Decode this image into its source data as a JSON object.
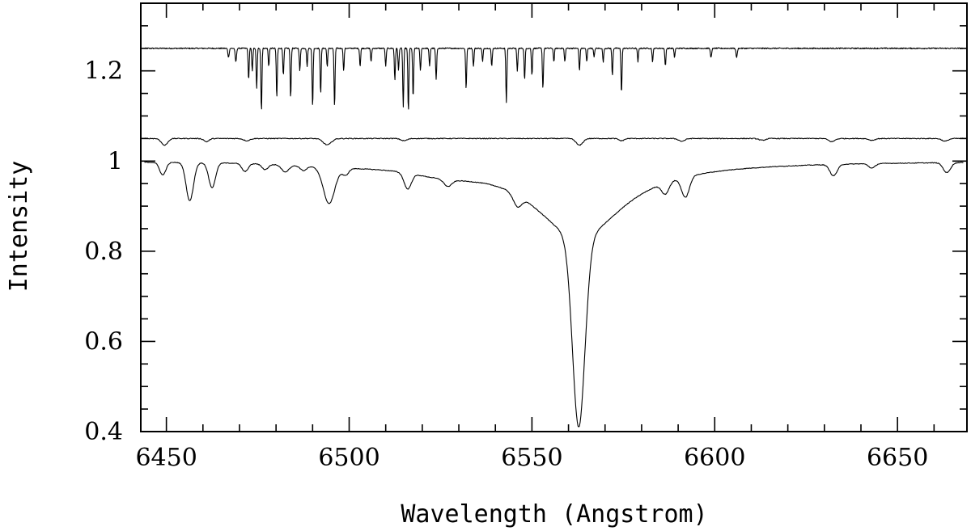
{
  "chart_data": {
    "type": "line",
    "xlabel": "Wavelength (Angstrom)",
    "ylabel": "Intensity",
    "xlim": [
      6443,
      6669
    ],
    "ylim": [
      0.4,
      1.35
    ],
    "grid": false,
    "legend": "none",
    "xticks": [
      6450,
      6500,
      6550,
      6600,
      6650
    ],
    "xtick_labels": [
      "6450",
      "6500",
      "6550",
      "6600",
      "6650"
    ],
    "yticks": [
      0.4,
      0.6,
      0.8,
      1.0,
      1.2
    ],
    "ytick_labels": [
      "0.4",
      "0.6",
      "0.8",
      "1",
      "1.2"
    ],
    "series": [
      {
        "continuum": 1.25,
        "lines": [
          [
            6467.0,
            0.02,
            0.25
          ],
          [
            6469.0,
            0.03,
            0.25
          ],
          [
            6472.5,
            0.07,
            0.2
          ],
          [
            6473.5,
            0.05,
            0.2
          ],
          [
            6474.7,
            0.09,
            0.2
          ],
          [
            6476.0,
            0.14,
            0.2
          ],
          [
            6478.0,
            0.04,
            0.2
          ],
          [
            6480.2,
            0.11,
            0.2
          ],
          [
            6482.0,
            0.06,
            0.2
          ],
          [
            6484.0,
            0.11,
            0.2
          ],
          [
            6486.5,
            0.05,
            0.2
          ],
          [
            6488.5,
            0.04,
            0.2
          ],
          [
            6490.0,
            0.13,
            0.2
          ],
          [
            6492.2,
            0.1,
            0.2
          ],
          [
            6494.0,
            0.04,
            0.2
          ],
          [
            6496.0,
            0.13,
            0.2
          ],
          [
            6498.5,
            0.05,
            0.2
          ],
          [
            6503.0,
            0.04,
            0.2
          ],
          [
            6506.0,
            0.03,
            0.2
          ],
          [
            6510.0,
            0.04,
            0.2
          ],
          [
            6512.5,
            0.07,
            0.2
          ],
          [
            6513.5,
            0.05,
            0.2
          ],
          [
            6514.8,
            0.13,
            0.2
          ],
          [
            6516.2,
            0.14,
            0.2
          ],
          [
            6517.5,
            0.11,
            0.2
          ],
          [
            6519.5,
            0.05,
            0.2
          ],
          [
            6522.0,
            0.04,
            0.2
          ],
          [
            6523.8,
            0.07,
            0.2
          ],
          [
            6532.0,
            0.09,
            0.2
          ],
          [
            6534.0,
            0.04,
            0.2
          ],
          [
            6536.5,
            0.03,
            0.2
          ],
          [
            6539.0,
            0.04,
            0.2
          ],
          [
            6543.0,
            0.12,
            0.2
          ],
          [
            6546.0,
            0.05,
            0.2
          ],
          [
            6548.0,
            0.07,
            0.2
          ],
          [
            6550.0,
            0.06,
            0.2
          ],
          [
            6553.0,
            0.09,
            0.2
          ],
          [
            6556.0,
            0.03,
            0.2
          ],
          [
            6559.0,
            0.03,
            0.2
          ],
          [
            6563.0,
            0.05,
            0.2
          ],
          [
            6565.0,
            0.03,
            0.2
          ],
          [
            6567.0,
            0.02,
            0.2
          ],
          [
            6569.5,
            0.03,
            0.2
          ],
          [
            6572.0,
            0.06,
            0.2
          ],
          [
            6574.5,
            0.1,
            0.2
          ],
          [
            6579.0,
            0.03,
            0.2
          ],
          [
            6583.0,
            0.03,
            0.2
          ],
          [
            6586.5,
            0.04,
            0.2
          ],
          [
            6589.0,
            0.02,
            0.2
          ],
          [
            6599.0,
            0.02,
            0.25
          ],
          [
            6606.0,
            0.02,
            0.25
          ]
        ]
      },
      {
        "continuum": 1.05,
        "lines": [
          [
            6449.5,
            0.015,
            1.2
          ],
          [
            6461.0,
            0.007,
            1.0
          ],
          [
            6472.0,
            0.005,
            1.2
          ],
          [
            6494.0,
            0.014,
            1.6
          ],
          [
            6515.0,
            0.005,
            1.2
          ],
          [
            6563.0,
            0.015,
            1.3
          ],
          [
            6574.5,
            0.005,
            1.0
          ],
          [
            6591.0,
            0.006,
            1.2
          ],
          [
            6613.0,
            0.004,
            1.2
          ],
          [
            6632.0,
            0.007,
            1.2
          ],
          [
            6643.0,
            0.004,
            1.2
          ],
          [
            6663.0,
            0.006,
            1.2
          ]
        ]
      },
      {
        "continuum": 1.0,
        "lines": [
          [
            6449.0,
            0.028,
            1.2
          ],
          [
            6456.4,
            0.085,
            1.4
          ],
          [
            6462.5,
            0.055,
            1.3
          ],
          [
            6471.5,
            0.018,
            1.2
          ],
          [
            6477.0,
            0.012,
            1.2
          ],
          [
            6482.5,
            0.015,
            1.4
          ],
          [
            6487.5,
            0.01,
            1.2
          ],
          [
            6494.5,
            0.08,
            2.2
          ],
          [
            6499.0,
            0.015,
            1.2
          ],
          [
            6516.0,
            0.035,
            1.4
          ],
          [
            6527.0,
            0.015,
            1.5
          ],
          [
            6546.0,
            0.025,
            1.6
          ],
          [
            6562.8,
            0.42,
            2.4
          ],
          [
            6586.5,
            0.025,
            1.4
          ],
          [
            6592.0,
            0.045,
            1.5
          ],
          [
            6632.5,
            0.025,
            1.4
          ],
          [
            6643.0,
            0.01,
            1.2
          ],
          [
            6663.5,
            0.022,
            1.4
          ]
        ],
        "broad_wing": {
          "center": 6562.8,
          "depth": 0.17,
          "width": 15
        },
        "extra_depressions": [
          {
            "center": 6526.0,
            "depth": 0.015,
            "width": 12
          },
          {
            "center": 6500.0,
            "depth": 0.007,
            "width": 20
          }
        ]
      }
    ]
  }
}
